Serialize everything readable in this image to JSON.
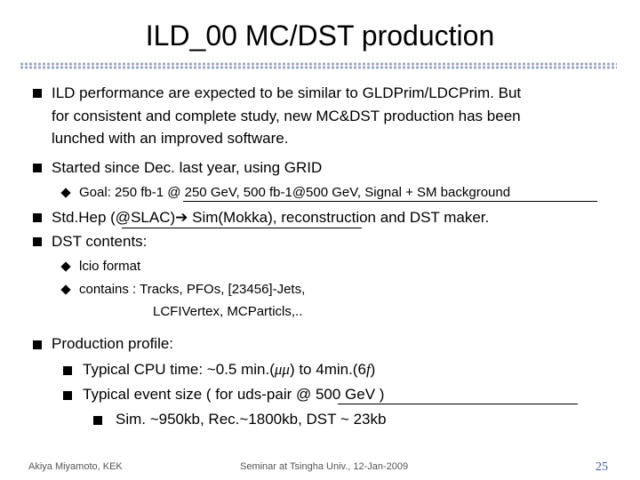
{
  "title": "ILD_00 MC/DST production",
  "bullets": {
    "b1_line1": "ILD performance are expected to be similar to GLDPrim/LDCPrim.  But",
    "b1_line2": "for consistent and complete study, new MC&DST production has been",
    "b1_line3": "lunched with an improved software.",
    "b2": "Started since Dec. last year, using GRID",
    "b2_sub": "Goal: 250 fb-1 @ 250 GeV, 500 fb-1@500 GeV, Signal + SM background",
    "b3_part1": "Std.Hep (@SLAC)",
    "b3_arrow": "➔",
    "b3_part2": " Sim(Mokka), reconstruction and DST maker.",
    "b4": "DST contents:",
    "b4_sub1": "lcio format",
    "b4_sub2_line1": "contains : Tracks, PFOs, [23456]-Jets,",
    "b4_sub2_line2": "LCFIVertex, MCParticls,..",
    "b5": "Production profile:",
    "b5_sub1_pre": "Typical CPU time: ~0.5 min.(",
    "b5_sub1_mu": "μμ",
    "b5_sub1_mid": ") to 4min.(6",
    "b5_sub1_f": "f",
    "b5_sub1_post": ")",
    "b5_sub2": "Typical event size ( for uds-pair @ 500 GeV )",
    "b5_sub2_sub": "Sim. ~950kb, Rec.~1800kb, DST ~ 23kb"
  },
  "footer": {
    "author": "Akiya Miyamoto, KEK",
    "event": "Seminar at Tsingha Univ., 12-Jan-2009",
    "page": "25"
  },
  "colors": {
    "rule_dots": "#9aa6c8",
    "page_number": "#3a5a9a",
    "footer_text": "#555555"
  }
}
